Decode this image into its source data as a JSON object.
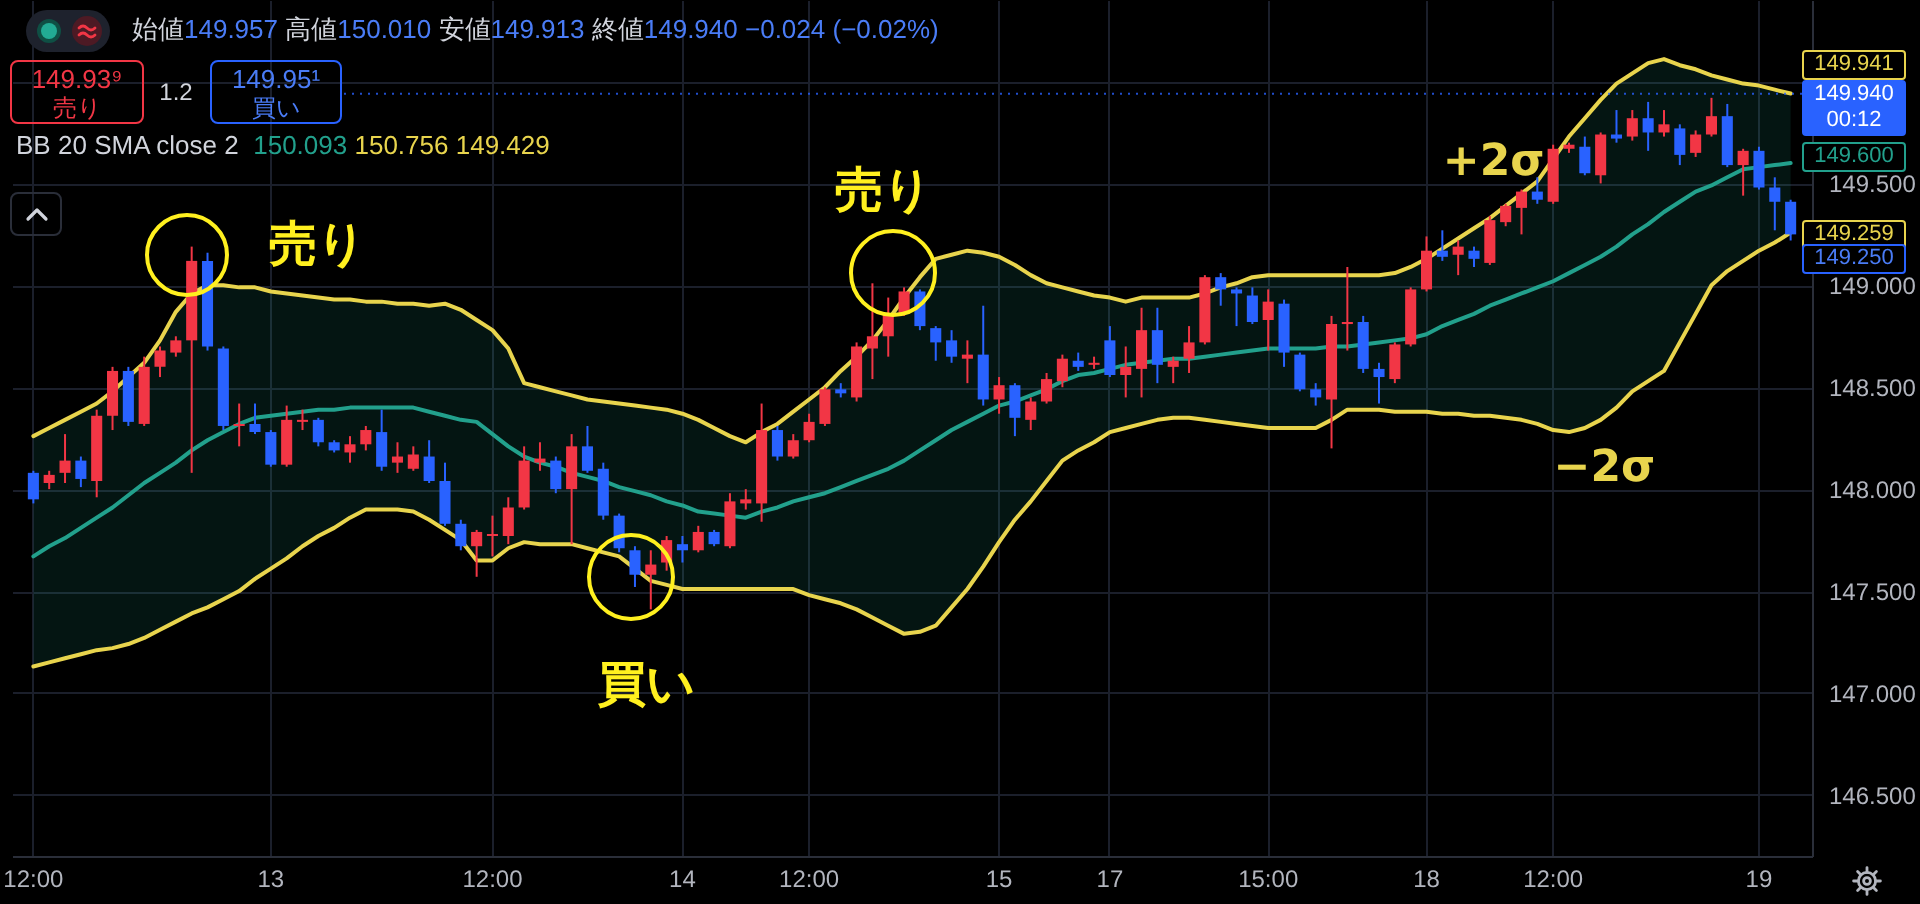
{
  "chart_data": {
    "type": "candlestick",
    "title": "始値149.957 高値150.010 安値149.913 終値149.940 −0.024 (−0.02%)",
    "subtitle": "BB 20 SMA close 2 150.093 150.756 149.429",
    "categories": [
      "12:00",
      null,
      null,
      null,
      null,
      null,
      null,
      null,
      null,
      null,
      null,
      null,
      null,
      null,
      null,
      "13",
      null,
      null,
      null,
      null,
      null,
      null,
      null,
      null,
      null,
      null,
      null,
      null,
      null,
      "12:00",
      null,
      null,
      null,
      null,
      null,
      null,
      null,
      null,
      null,
      null,
      null,
      "14",
      null,
      null,
      null,
      null,
      null,
      null,
      null,
      "12:00",
      null,
      null,
      null,
      null,
      null,
      null,
      null,
      null,
      null,
      null,
      null,
      "15",
      null,
      null,
      null,
      null,
      null,
      null,
      "17",
      null,
      null,
      null,
      null,
      null,
      null,
      null,
      null,
      null,
      "15:00",
      null,
      null,
      null,
      null,
      null,
      null,
      null,
      null,
      null,
      "18",
      null,
      null,
      null,
      null,
      null,
      null,
      null,
      "12:00",
      null,
      null,
      null,
      null,
      null,
      null,
      null,
      null,
      null,
      null,
      null,
      null,
      "19",
      null,
      null
    ],
    "ohlc": [
      [
        148.08,
        148.09,
        147.93,
        147.95
      ],
      [
        148.03,
        148.09,
        148.0,
        148.07
      ],
      [
        148.08,
        148.27,
        148.03,
        148.14
      ],
      [
        148.14,
        148.16,
        148.01,
        148.05
      ],
      [
        148.04,
        148.39,
        147.96,
        148.36
      ],
      [
        148.36,
        148.6,
        148.29,
        148.58
      ],
      [
        148.58,
        148.6,
        148.31,
        148.33
      ],
      [
        148.32,
        148.65,
        148.31,
        148.6
      ],
      [
        148.6,
        148.7,
        148.55,
        148.68
      ],
      [
        148.67,
        148.75,
        148.65,
        148.73
      ],
      [
        148.73,
        149.19,
        148.08,
        149.12
      ],
      [
        149.12,
        149.16,
        148.68,
        148.7
      ],
      [
        148.69,
        148.7,
        148.29,
        148.31
      ],
      [
        148.31,
        148.42,
        148.21,
        148.32
      ],
      [
        148.32,
        148.42,
        148.27,
        148.28
      ],
      [
        148.28,
        148.29,
        148.11,
        148.12
      ],
      [
        148.12,
        148.41,
        148.11,
        148.34
      ],
      [
        148.33,
        148.39,
        148.29,
        148.34
      ],
      [
        148.34,
        148.35,
        148.21,
        148.23
      ],
      [
        148.23,
        148.24,
        148.18,
        148.19
      ],
      [
        148.18,
        148.26,
        148.13,
        148.22
      ],
      [
        148.22,
        148.31,
        148.19,
        148.29
      ],
      [
        148.28,
        148.39,
        148.09,
        148.11
      ],
      [
        148.13,
        148.23,
        148.08,
        148.16
      ],
      [
        148.1,
        148.21,
        148.09,
        148.17
      ],
      [
        148.16,
        148.24,
        148.03,
        148.04
      ],
      [
        148.04,
        148.13,
        147.82,
        147.83
      ],
      [
        147.83,
        147.85,
        147.7,
        147.72
      ],
      [
        147.72,
        147.8,
        147.57,
        147.79
      ],
      [
        147.77,
        147.87,
        147.67,
        147.78
      ],
      [
        147.77,
        147.96,
        147.73,
        147.91
      ],
      [
        147.91,
        148.21,
        147.9,
        148.14
      ],
      [
        148.13,
        148.23,
        148.09,
        148.15
      ],
      [
        148.14,
        148.16,
        147.98,
        148.0
      ],
      [
        148.0,
        148.27,
        147.73,
        148.21
      ],
      [
        148.21,
        148.31,
        148.08,
        148.09
      ],
      [
        148.1,
        148.13,
        147.85,
        147.87
      ],
      [
        147.87,
        147.88,
        147.69,
        147.71
      ],
      [
        147.7,
        147.72,
        147.52,
        147.58
      ],
      [
        147.58,
        147.7,
        147.41,
        147.63
      ],
      [
        147.64,
        147.77,
        147.6,
        147.75
      ],
      [
        147.73,
        147.77,
        147.64,
        147.7
      ],
      [
        147.7,
        147.82,
        147.69,
        147.79
      ],
      [
        147.79,
        147.8,
        147.72,
        147.73
      ],
      [
        147.72,
        147.98,
        147.71,
        147.94
      ],
      [
        147.93,
        148.0,
        147.9,
        147.95
      ],
      [
        147.93,
        148.42,
        147.84,
        148.29
      ],
      [
        148.29,
        148.31,
        148.14,
        148.16
      ],
      [
        148.16,
        148.27,
        148.15,
        148.24
      ],
      [
        148.24,
        148.37,
        148.23,
        148.33
      ],
      [
        148.32,
        148.5,
        148.31,
        148.49
      ],
      [
        148.49,
        148.52,
        148.45,
        148.47
      ],
      [
        148.45,
        148.72,
        148.43,
        148.7
      ],
      [
        148.69,
        149.01,
        148.54,
        148.75
      ],
      [
        148.75,
        148.94,
        148.65,
        148.86
      ],
      [
        148.86,
        148.99,
        148.85,
        148.97
      ],
      [
        148.97,
        148.98,
        148.78,
        148.8
      ],
      [
        148.79,
        148.8,
        148.63,
        148.72
      ],
      [
        148.73,
        148.78,
        148.62,
        148.65
      ],
      [
        148.64,
        148.73,
        148.52,
        148.66
      ],
      [
        148.66,
        148.9,
        148.41,
        148.44
      ],
      [
        148.44,
        148.55,
        148.37,
        148.51
      ],
      [
        148.51,
        148.52,
        148.26,
        148.35
      ],
      [
        148.34,
        148.45,
        148.29,
        148.43
      ],
      [
        148.43,
        148.57,
        148.42,
        148.54
      ],
      [
        148.53,
        148.66,
        148.5,
        148.64
      ],
      [
        148.63,
        148.67,
        148.58,
        148.6
      ],
      [
        148.61,
        148.65,
        148.59,
        148.62
      ],
      [
        148.73,
        148.8,
        148.55,
        148.56
      ],
      [
        148.56,
        148.7,
        148.45,
        148.6
      ],
      [
        148.59,
        148.89,
        148.45,
        148.78
      ],
      [
        148.78,
        148.89,
        148.52,
        148.61
      ],
      [
        148.6,
        148.65,
        148.52,
        148.63
      ],
      [
        148.64,
        148.8,
        148.57,
        148.72
      ],
      [
        148.72,
        149.05,
        148.71,
        149.04
      ],
      [
        149.04,
        149.06,
        148.9,
        148.98
      ],
      [
        148.98,
        148.99,
        148.8,
        148.96
      ],
      [
        148.95,
        148.99,
        148.81,
        148.82
      ],
      [
        148.83,
        148.98,
        148.68,
        148.92
      ],
      [
        148.91,
        148.93,
        148.6,
        148.67
      ],
      [
        148.66,
        148.67,
        148.48,
        148.49
      ],
      [
        148.49,
        148.52,
        148.41,
        148.45
      ],
      [
        148.44,
        148.85,
        148.2,
        148.81
      ],
      [
        148.81,
        149.09,
        148.68,
        148.82
      ],
      [
        148.82,
        148.85,
        148.57,
        148.59
      ],
      [
        148.59,
        148.62,
        148.42,
        148.55
      ],
      [
        148.54,
        148.72,
        148.52,
        148.71
      ],
      [
        148.71,
        148.99,
        148.7,
        148.98
      ],
      [
        148.98,
        149.24,
        148.97,
        149.17
      ],
      [
        149.17,
        149.27,
        149.12,
        149.14
      ],
      [
        149.15,
        149.22,
        149.05,
        149.19
      ],
      [
        149.17,
        149.19,
        149.09,
        149.13
      ],
      [
        149.11,
        149.34,
        149.1,
        149.32
      ],
      [
        149.31,
        149.4,
        149.29,
        149.39
      ],
      [
        149.38,
        149.47,
        149.25,
        149.46
      ],
      [
        149.46,
        149.53,
        149.4,
        149.42
      ],
      [
        149.41,
        149.69,
        149.4,
        149.67
      ],
      [
        149.67,
        149.7,
        149.65,
        149.69
      ],
      [
        149.68,
        149.73,
        149.54,
        149.55
      ],
      [
        149.54,
        149.75,
        149.5,
        149.74
      ],
      [
        149.74,
        149.86,
        149.7,
        149.72
      ],
      [
        149.73,
        149.86,
        149.71,
        149.82
      ],
      [
        149.82,
        149.9,
        149.66,
        149.75
      ],
      [
        149.75,
        149.86,
        149.73,
        149.79
      ],
      [
        149.77,
        149.79,
        149.59,
        149.64
      ],
      [
        149.65,
        149.76,
        149.63,
        149.74
      ],
      [
        149.74,
        149.92,
        149.73,
        149.83
      ],
      [
        149.83,
        149.89,
        149.58,
        149.59
      ],
      [
        149.59,
        149.67,
        149.44,
        149.66
      ],
      [
        149.66,
        149.68,
        149.47,
        149.48
      ],
      [
        149.48,
        149.53,
        149.27,
        149.41
      ],
      [
        149.41,
        149.42,
        149.22,
        149.25
      ]
    ],
    "colors": [
      "#2962ff",
      "#f23645",
      "#f23645",
      "#2962ff",
      "#f23645",
      "#f23645",
      "#2962ff",
      "#f23645",
      "#f23645",
      "#f23645",
      "#f23645",
      "#2962ff",
      "#2962ff",
      "#f23645",
      "#2962ff",
      "#2962ff",
      "#f23645",
      "#f23645",
      "#2962ff",
      "#2962ff",
      "#f23645",
      "#f23645",
      "#2962ff",
      "#f23645",
      "#f23645",
      "#2962ff",
      "#2962ff",
      "#2962ff",
      "#f23645",
      "#f23645",
      "#f23645",
      "#f23645",
      "#f23645",
      "#2962ff",
      "#f23645",
      "#2962ff",
      "#2962ff",
      "#2962ff",
      "#2962ff",
      "#f23645",
      "#f23645",
      "#2962ff",
      "#f23645",
      "#2962ff",
      "#f23645",
      "#f23645",
      "#f23645",
      "#2962ff",
      "#f23645",
      "#f23645",
      "#f23645",
      "#2962ff",
      "#f23645",
      "#f23645",
      "#f23645",
      "#f23645",
      "#2962ff",
      "#2962ff",
      "#2962ff",
      "#f23645",
      "#2962ff",
      "#f23645",
      "#2962ff",
      "#f23645",
      "#f23645",
      "#f23645",
      "#2962ff",
      "#f23645",
      "#2962ff",
      "#f23645",
      "#f23645",
      "#2962ff",
      "#f23645",
      "#f23645",
      "#f23645",
      "#2962ff",
      "#2962ff",
      "#2962ff",
      "#f23645",
      "#2962ff",
      "#2962ff",
      "#2962ff",
      "#f23645",
      "#f23645",
      "#2962ff",
      "#2962ff",
      "#f23645",
      "#f23645",
      "#f23645",
      "#2962ff",
      "#f23645",
      "#2962ff",
      "#f23645",
      "#f23645",
      "#f23645",
      "#2962ff",
      "#f23645",
      "#f23645",
      "#2962ff",
      "#f23645",
      "#2962ff",
      "#f23645",
      "#2962ff",
      "#f23645",
      "#2962ff",
      "#f23645",
      "#f23645",
      "#2962ff",
      "#f23645",
      "#2962ff",
      "#2962ff",
      "#2962ff"
    ],
    "series": [
      {
        "type": "line",
        "color": "#22a08c",
        "values": [
          147.67,
          147.72,
          147.76,
          147.81,
          147.86,
          147.91,
          147.97,
          148.03,
          148.08,
          148.13,
          148.19,
          148.24,
          148.28,
          148.32,
          148.35,
          148.36,
          148.37,
          148.38,
          148.39,
          148.39,
          148.4,
          148.4,
          148.4,
          148.4,
          148.4,
          148.38,
          148.36,
          148.34,
          148.33,
          148.27,
          148.21,
          148.16,
          148.13,
          148.11,
          148.08,
          148.06,
          148.04,
          148.01,
          147.99,
          147.97,
          147.94,
          147.92,
          147.89,
          147.88,
          147.87,
          147.86,
          147.89,
          147.91,
          147.94,
          147.96,
          147.98,
          148.01,
          148.04,
          148.07,
          148.1,
          148.14,
          148.19,
          148.24,
          148.29,
          148.33,
          148.37,
          148.41,
          148.43,
          148.46,
          148.49,
          148.53,
          148.56,
          148.57,
          148.59,
          148.61,
          148.62,
          148.63,
          148.64,
          148.64,
          148.65,
          148.66,
          148.67,
          148.68,
          148.69,
          148.69,
          148.69,
          148.69,
          148.7,
          148.7,
          148.71,
          148.72,
          148.73,
          148.74,
          148.76,
          148.8,
          148.83,
          148.86,
          148.9,
          148.93,
          148.96,
          148.99,
          149.02,
          149.06,
          149.1,
          149.14,
          149.19,
          149.25,
          149.3,
          149.36,
          149.41,
          149.46,
          149.49,
          149.53,
          149.57,
          149.58,
          149.59,
          149.6
        ],
        "lower": [
          147.13,
          147.15,
          147.17,
          147.19,
          147.21,
          147.22,
          147.24,
          147.27,
          147.31,
          147.35,
          147.39,
          147.42,
          147.46,
          147.5,
          147.56,
          147.61,
          147.66,
          147.72,
          147.77,
          147.81,
          147.86,
          147.9,
          147.9,
          147.9,
          147.89,
          147.85,
          147.8,
          147.75,
          147.65,
          147.65,
          147.71,
          147.74,
          147.73,
          147.73,
          147.73,
          147.71,
          147.69,
          147.67,
          147.61,
          147.55,
          147.53,
          147.51,
          147.51,
          147.51,
          147.51,
          147.51,
          147.51,
          147.51,
          147.51,
          147.48,
          147.46,
          147.44,
          147.41,
          147.37,
          147.33,
          147.29,
          147.3,
          147.33,
          147.42,
          147.51,
          147.62,
          147.74,
          147.85,
          147.94,
          148.04,
          148.14,
          148.19,
          148.23,
          148.28,
          148.3,
          148.32,
          148.34,
          148.35,
          148.35,
          148.34,
          148.33,
          148.32,
          148.31,
          148.3,
          148.3,
          148.3,
          148.3,
          148.34,
          148.39,
          148.39,
          148.39,
          148.38,
          148.38,
          148.38,
          148.37,
          148.37,
          148.36,
          148.36,
          148.35,
          148.34,
          148.32,
          148.29,
          148.28,
          148.3,
          148.34,
          148.4,
          148.48,
          148.53,
          148.58,
          148.72,
          148.86,
          149.0,
          149.07,
          149.12,
          149.17,
          149.21,
          149.259
        ],
        "upper": [
          148.26,
          148.3,
          148.34,
          148.38,
          148.42,
          148.48,
          148.55,
          148.62,
          148.73,
          148.87,
          148.96,
          149.0,
          149.0,
          148.99,
          148.99,
          148.97,
          148.96,
          148.95,
          148.94,
          148.93,
          148.93,
          148.92,
          148.92,
          148.91,
          148.91,
          148.9,
          148.91,
          148.88,
          148.83,
          148.78,
          148.69,
          148.52,
          148.5,
          148.48,
          148.46,
          148.44,
          148.43,
          148.42,
          148.41,
          148.4,
          148.39,
          148.37,
          148.34,
          148.3,
          148.26,
          148.23,
          148.28,
          148.32,
          148.38,
          148.44,
          148.5,
          148.58,
          148.65,
          148.73,
          148.83,
          148.94,
          149.04,
          149.13,
          149.15,
          149.17,
          149.16,
          149.14,
          149.1,
          149.05,
          149.01,
          148.99,
          148.97,
          148.95,
          148.94,
          148.92,
          148.94,
          148.94,
          148.94,
          148.94,
          148.96,
          148.99,
          149.01,
          149.04,
          149.05,
          149.05,
          149.05,
          149.05,
          149.05,
          149.05,
          149.05,
          149.05,
          149.06,
          149.09,
          149.13,
          149.18,
          149.23,
          149.28,
          149.33,
          149.39,
          149.45,
          149.51,
          149.62,
          149.73,
          149.82,
          149.91,
          149.99,
          150.04,
          150.09,
          150.11,
          150.08,
          150.06,
          150.03,
          150.01,
          149.99,
          149.98,
          149.96,
          149.941
        ],
        "value_labels": [
          null,
          null,
          null,
          null,
          null,
          null,
          null,
          null,
          null,
          null,
          null,
          null,
          null,
          null,
          null,
          null,
          null,
          null,
          null,
          null,
          null,
          null,
          null,
          null,
          null,
          null,
          null,
          null,
          null,
          null,
          null,
          null,
          null,
          null,
          null,
          null,
          null,
          null,
          null,
          null,
          null,
          null,
          null,
          null,
          null,
          null,
          null,
          null,
          null,
          null,
          null,
          null,
          null,
          null,
          null,
          null,
          null,
          null,
          null,
          null,
          null,
          null,
          null,
          null,
          null,
          null,
          null,
          null,
          null,
          null,
          null,
          null,
          null,
          null,
          null,
          null,
          null,
          null,
          null,
          null,
          null,
          null,
          null,
          null,
          null,
          null,
          null,
          null,
          null,
          null,
          null,
          null,
          null,
          null,
          null,
          null,
          null,
          null,
          null,
          null,
          null,
          null,
          null,
          null,
          null,
          null,
          null,
          null,
          null,
          null,
          null,
          "149.600"
        ]
      },
      {
        "type": "line",
        "name": "+2σ",
        "color": "#e8d44d",
        "values": [
          148.26,
          148.3,
          148.34,
          148.38,
          148.42,
          148.48,
          148.55,
          148.62,
          148.73,
          148.87,
          148.96,
          149.0,
          149.0,
          148.99,
          148.99,
          148.97,
          148.96,
          148.95,
          148.94,
          148.93,
          148.93,
          148.92,
          148.92,
          148.91,
          148.91,
          148.9,
          148.91,
          148.88,
          148.83,
          148.78,
          148.69,
          148.52,
          148.5,
          148.48,
          148.46,
          148.44,
          148.43,
          148.42,
          148.41,
          148.4,
          148.39,
          148.37,
          148.34,
          148.3,
          148.26,
          148.23,
          148.28,
          148.32,
          148.38,
          148.44,
          148.5,
          148.58,
          148.65,
          148.73,
          148.83,
          148.94,
          149.04,
          149.13,
          149.15,
          149.17,
          149.16,
          149.14,
          149.1,
          149.05,
          149.01,
          148.99,
          148.97,
          148.95,
          148.94,
          148.92,
          148.94,
          148.94,
          148.94,
          148.94,
          148.96,
          148.99,
          149.01,
          149.04,
          149.05,
          149.05,
          149.05,
          149.05,
          149.05,
          149.05,
          149.05,
          149.05,
          149.06,
          149.09,
          149.13,
          149.18,
          149.23,
          149.28,
          149.33,
          149.39,
          149.45,
          149.51,
          149.62,
          149.73,
          149.82,
          149.91,
          149.99,
          150.04,
          150.09,
          150.11,
          150.08,
          150.06,
          150.03,
          150.01,
          149.99,
          149.98,
          149.96,
          149.941
        ],
        "value_labels": [
          null,
          null,
          null,
          null,
          null,
          null,
          null,
          null,
          null,
          null,
          null,
          null,
          null,
          null,
          null,
          null,
          null,
          null,
          null,
          null,
          null,
          null,
          null,
          null,
          null,
          null,
          null,
          null,
          null,
          null,
          null,
          null,
          null,
          null,
          null,
          null,
          null,
          null,
          null,
          null,
          null,
          null,
          null,
          null,
          null,
          null,
          null,
          null,
          null,
          null,
          null,
          null,
          null,
          null,
          null,
          null,
          null,
          null,
          null,
          null,
          null,
          null,
          null,
          null,
          null,
          null,
          null,
          null,
          null,
          null,
          null,
          null,
          null,
          null,
          null,
          null,
          null,
          null,
          null,
          null,
          null,
          null,
          null,
          null,
          null,
          null,
          null,
          null,
          null,
          null,
          null,
          null,
          null,
          null,
          null,
          null,
          null,
          null,
          null,
          null,
          null,
          null,
          null,
          null,
          null,
          null,
          null,
          null,
          null,
          null,
          null,
          "149.941"
        ]
      },
      {
        "type": "line",
        "name": "−2σ",
        "color": "#e8d44d",
        "values": [
          147.13,
          147.15,
          147.17,
          147.19,
          147.21,
          147.22,
          147.24,
          147.27,
          147.31,
          147.35,
          147.39,
          147.42,
          147.46,
          147.5,
          147.56,
          147.61,
          147.66,
          147.72,
          147.77,
          147.81,
          147.86,
          147.9,
          147.9,
          147.9,
          147.89,
          147.85,
          147.8,
          147.75,
          147.65,
          147.65,
          147.71,
          147.74,
          147.73,
          147.73,
          147.73,
          147.71,
          147.69,
          147.67,
          147.61,
          147.55,
          147.53,
          147.51,
          147.51,
          147.51,
          147.51,
          147.51,
          147.51,
          147.51,
          147.51,
          147.48,
          147.46,
          147.44,
          147.41,
          147.37,
          147.33,
          147.29,
          147.3,
          147.33,
          147.42,
          147.51,
          147.62,
          147.74,
          147.85,
          147.94,
          148.04,
          148.14,
          148.19,
          148.23,
          148.28,
          148.3,
          148.32,
          148.34,
          148.35,
          148.35,
          148.34,
          148.33,
          148.32,
          148.31,
          148.3,
          148.3,
          148.3,
          148.3,
          148.34,
          148.39,
          148.39,
          148.39,
          148.38,
          148.38,
          148.38,
          148.37,
          148.37,
          148.36,
          148.36,
          148.35,
          148.34,
          148.32,
          148.29,
          148.28,
          148.3,
          148.34,
          148.4,
          148.48,
          148.53,
          148.58,
          148.72,
          148.86,
          149.0,
          149.07,
          149.12,
          149.17,
          149.21,
          149.259
        ],
        "value_labels": [
          null,
          null,
          null,
          null,
          null,
          null,
          null,
          null,
          null,
          null,
          null,
          null,
          null,
          null,
          null,
          null,
          null,
          null,
          null,
          null,
          null,
          null,
          null,
          null,
          null,
          null,
          null,
          null,
          null,
          null,
          null,
          null,
          null,
          null,
          null,
          null,
          null,
          null,
          null,
          null,
          null,
          null,
          null,
          null,
          null,
          null,
          null,
          null,
          null,
          null,
          null,
          null,
          null,
          null,
          null,
          null,
          null,
          null,
          null,
          null,
          null,
          null,
          null,
          null,
          null,
          null,
          null,
          null,
          null,
          null,
          null,
          null,
          null,
          null,
          null,
          null,
          null,
          null,
          null,
          null,
          null,
          null,
          null,
          null,
          null,
          null,
          null,
          null,
          null,
          null,
          null,
          null,
          null,
          null,
          null,
          null,
          null,
          null,
          null,
          null,
          null,
          null,
          null,
          null,
          null,
          null,
          null,
          null,
          null,
          null,
          null,
          "149.259"
        ]
      }
    ],
    "ylim": [
      146.2,
      150.4
    ],
    "yticks": [
      {
        "value": 146.5,
        "label": "146.500"
      },
      {
        "value": 147,
        "label": "147.000"
      },
      {
        "value": 147.5,
        "label": "147.500"
      },
      {
        "value": 148,
        "label": "148.000"
      },
      {
        "value": 148.5,
        "label": "148.500"
      },
      {
        "value": 149,
        "label": "149.000"
      },
      {
        "value": 149.5,
        "label": "149.500"
      },
      {
        "value": 150,
        "label": null
      }
    ],
    "grid": true,
    "ref_lines": [
      {
        "axis": "y",
        "value": 149.94,
        "label": "149.940",
        "line_style": "dotted",
        "color": "#2962ff"
      }
    ],
    "annotations": [
      "149.93⁹",
      "売り",
      "1.2",
      "149.95¹",
      "買い",
      "売り",
      "売り",
      "買い",
      "00:12",
      "149.250"
    ]
  }
}
